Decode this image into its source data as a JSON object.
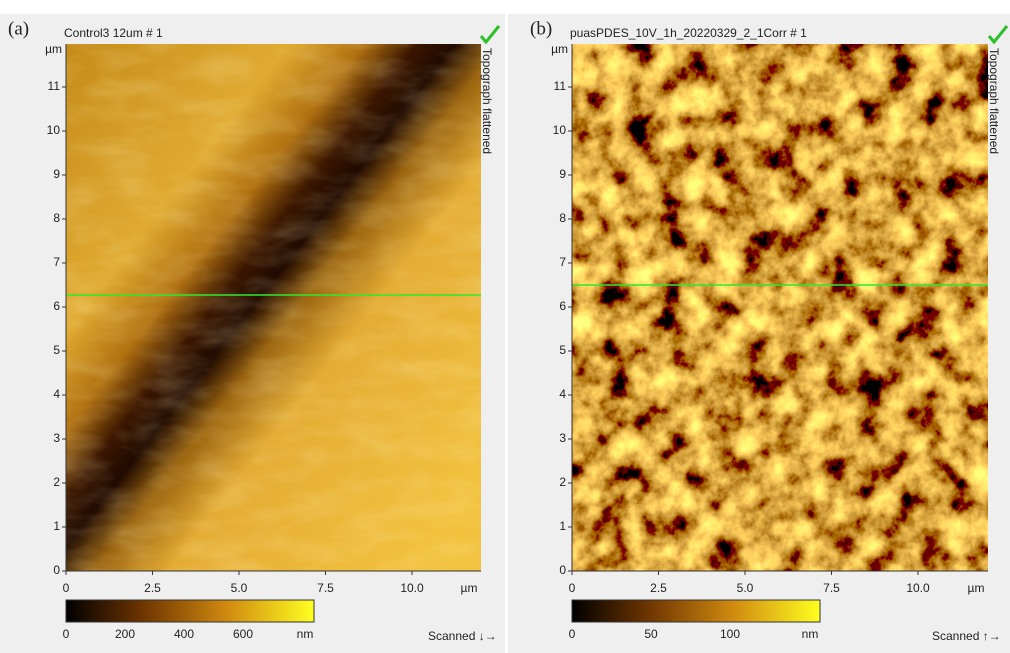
{
  "panels": [
    {
      "label": "(a)",
      "title": "Control3 12um # 1",
      "mode": "Topograph flattened",
      "y_unit": "µm",
      "y_ticks": [
        "0",
        "1",
        "2",
        "3",
        "4",
        "5",
        "6",
        "7",
        "8",
        "9",
        "10",
        "11"
      ],
      "x_ticks": [
        "0",
        "2.5",
        "5.0",
        "7.5",
        "10.0"
      ],
      "x_unit": "µm",
      "colorbar_ticks": [
        "0",
        "200",
        "400",
        "600"
      ],
      "colorbar_unit": "nm",
      "scan": "Scanned ↓→"
    },
    {
      "label": "(b)",
      "title": "puasPDES_10V_1h_20220329_2_1Corr # 1",
      "mode": "Topograph flattened",
      "y_unit": "µm",
      "y_ticks": [
        "0",
        "1",
        "2",
        "3",
        "4",
        "5",
        "6",
        "7",
        "8",
        "9",
        "10",
        "11"
      ],
      "x_ticks": [
        "0",
        "2.5",
        "5.0",
        "7.5",
        "10.0"
      ],
      "x_unit": "µm",
      "colorbar_ticks": [
        "0",
        "50",
        "100"
      ],
      "colorbar_unit": "nm",
      "scan": "Scanned ↑→"
    }
  ]
}
